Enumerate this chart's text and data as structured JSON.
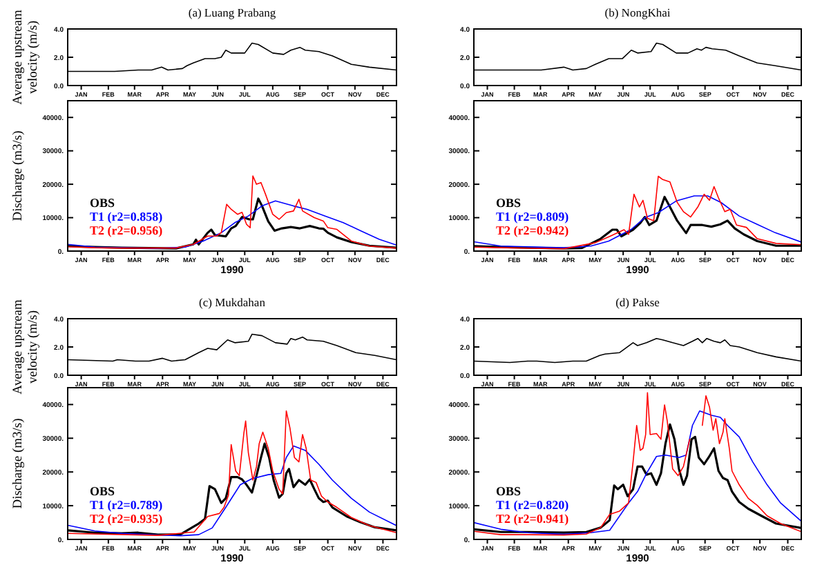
{
  "chart_data": [
    {
      "type": "line",
      "title": "(a) Luang Prabang",
      "ylabel": "Average upstream velocity (m/s)",
      "xlim": [
        "1990-01-01",
        "1990-12-31"
      ],
      "ylim": [
        0,
        4
      ],
      "yticks": [
        {
          "value": 0,
          "label": "0.0"
        },
        {
          "value": 2,
          "label": "2.0"
        },
        {
          "value": 4,
          "label": "4.0"
        }
      ],
      "xticks": [
        {
          "value": "1990-01-16",
          "label": "JAN"
        },
        {
          "value": "1990-02-15",
          "label": "FEB"
        },
        {
          "value": "1990-03-16",
          "label": "MAR"
        },
        {
          "value": "1990-04-16",
          "label": "APR"
        },
        {
          "value": "1990-05-16",
          "label": "MAY"
        },
        {
          "value": "1990-06-16",
          "label": "JUN"
        },
        {
          "value": "1990-07-16",
          "label": "JUL"
        },
        {
          "value": "1990-08-16",
          "label": "AUG"
        },
        {
          "value": "1990-09-15",
          "label": "SEP"
        },
        {
          "value": "1990-10-16",
          "label": "OCT"
        },
        {
          "value": "1990-11-15",
          "label": "NOV"
        },
        {
          "value": "1990-12-16",
          "label": "DEC"
        }
      ],
      "series": [
        {
          "color": "#000000",
          "x": [
            "1990-01-01",
            "1990-02-22",
            "1990-03-20",
            "1990-04-04",
            "1990-04-15",
            "1990-04-22",
            "1990-05-08",
            "1990-05-13",
            "1990-05-20",
            "1990-06-02",
            "1990-06-13",
            "1990-06-20",
            "1990-06-25",
            "1990-07-01",
            "1990-07-16",
            "1990-07-24",
            "1990-07-31",
            "1990-08-16",
            "1990-08-28",
            "1990-09-05",
            "1990-09-15",
            "1990-09-21",
            "1990-10-06",
            "1990-10-21",
            "1990-11-11",
            "1990-12-01",
            "1990-12-31"
          ],
          "values": [
            1.0,
            1.0,
            1.1,
            1.1,
            1.3,
            1.1,
            1.2,
            1.4,
            1.6,
            1.9,
            1.9,
            2.0,
            2.5,
            2.3,
            2.3,
            3.0,
            2.9,
            2.3,
            2.2,
            2.5,
            2.7,
            2.5,
            2.4,
            2.1,
            1.5,
            1.3,
            1.1
          ]
        }
      ]
    },
    {
      "type": "line",
      "ylabel": "Discharge (m3/s)",
      "xlabel": "1990",
      "legend": "bottom left",
      "xlim": [
        "1990-01-01",
        "1990-12-31"
      ],
      "ylim": [
        0,
        45000
      ],
      "yticks": [
        {
          "value": 0,
          "label": "0."
        },
        {
          "value": 10000,
          "label": "10000."
        },
        {
          "value": 20000,
          "label": "20000."
        },
        {
          "value": 30000,
          "label": "30000."
        },
        {
          "value": 40000,
          "label": "40000."
        }
      ],
      "xticks": [
        {
          "value": "1990-01-16",
          "label": "JAN"
        },
        {
          "value": "1990-02-15",
          "label": "FEB"
        },
        {
          "value": "1990-03-16",
          "label": "MAR"
        },
        {
          "value": "1990-04-16",
          "label": "APR"
        },
        {
          "value": "1990-05-16",
          "label": "MAY"
        },
        {
          "value": "1990-06-16",
          "label": "JUN"
        },
        {
          "value": "1990-07-16",
          "label": "JUL"
        },
        {
          "value": "1990-08-16",
          "label": "AUG"
        },
        {
          "value": "1990-09-15",
          "label": "SEP"
        },
        {
          "value": "1990-10-16",
          "label": "OCT"
        },
        {
          "value": "1990-11-15",
          "label": "NOV"
        },
        {
          "value": "1990-12-16",
          "label": "DEC"
        }
      ],
      "series": [
        {
          "name": "OBS",
          "color": "#000000",
          "x": [
            "1990-01-01",
            "1990-01-31",
            "1990-03-02",
            "1990-04-01",
            "1990-05-01",
            "1990-05-20",
            "1990-05-23",
            "1990-05-26",
            "1990-06-05",
            "1990-06-09",
            "1990-06-13",
            "1990-06-25",
            "1990-07-01",
            "1990-07-06",
            "1990-07-13",
            "1990-07-21",
            "1990-07-25",
            "1990-07-31",
            "1990-08-04",
            "1990-08-11",
            "1990-08-18",
            "1990-08-26",
            "1990-09-05",
            "1990-09-15",
            "1990-09-26",
            "1990-10-06",
            "1990-10-11",
            "1990-10-16",
            "1990-10-26",
            "1990-11-11",
            "1990-12-01",
            "1990-12-31"
          ],
          "values": [
            1500,
            1200,
            1000,
            900,
            800,
            2000,
            3400,
            2000,
            5500,
            6400,
            4800,
            4400,
            6800,
            7500,
            10200,
            9500,
            9500,
            15700,
            13600,
            8900,
            6100,
            6800,
            7200,
            6800,
            7500,
            6800,
            6700,
            5500,
            4100,
            2700,
            1600,
            1000
          ]
        },
        {
          "name": "T1 (r2=0.858)",
          "color": "#0000ff",
          "x": [
            "1990-01-01",
            "1990-01-31",
            "1990-04-11",
            "1990-05-11",
            "1990-05-31",
            "1990-06-20",
            "1990-07-05",
            "1990-07-20",
            "1990-08-04",
            "1990-08-19",
            "1990-09-08",
            "1990-09-23",
            "1990-10-13",
            "1990-11-02",
            "1990-11-22",
            "1990-12-12",
            "1990-12-31"
          ],
          "values": [
            2000,
            1200,
            800,
            1200,
            3000,
            5500,
            8500,
            10500,
            13500,
            15000,
            13500,
            12500,
            10500,
            8500,
            6000,
            3500,
            1800
          ]
        },
        {
          "name": "T2 (r2=0.956)",
          "color": "#ff0000",
          "x": [
            "1990-01-01",
            "1990-01-31",
            "1990-03-02",
            "1990-04-01",
            "1990-05-01",
            "1990-05-20",
            "1990-06-05",
            "1990-06-15",
            "1990-06-20",
            "1990-06-26",
            "1990-07-01",
            "1990-07-08",
            "1990-07-13",
            "1990-07-18",
            "1990-07-22",
            "1990-07-25",
            "1990-07-29",
            "1990-08-03",
            "1990-08-08",
            "1990-08-16",
            "1990-08-23",
            "1990-08-31",
            "1990-09-08",
            "1990-09-14",
            "1990-09-18",
            "1990-10-01",
            "1990-10-11",
            "1990-10-16",
            "1990-10-26",
            "1990-11-11",
            "1990-12-01",
            "1990-12-31"
          ],
          "values": [
            1300,
            1000,
            900,
            900,
            900,
            2000,
            4500,
            4500,
            5500,
            14000,
            12500,
            11000,
            11600,
            8000,
            7000,
            22500,
            20000,
            20500,
            17000,
            11000,
            9500,
            11500,
            12000,
            15500,
            12000,
            10000,
            9000,
            7000,
            6500,
            3000,
            1500,
            900
          ]
        }
      ]
    },
    {
      "type": "line",
      "title": "(b) NongKhai",
      "xlim": [
        "1990-01-01",
        "1990-12-31"
      ],
      "ylim": [
        0,
        4
      ],
      "yticks": [
        {
          "value": 0,
          "label": "0.0"
        },
        {
          "value": 2,
          "label": "2.0"
        },
        {
          "value": 4,
          "label": "4.0"
        }
      ],
      "xticks": [
        {
          "value": "1990-01-16",
          "label": "JAN"
        },
        {
          "value": "1990-02-15",
          "label": "FEB"
        },
        {
          "value": "1990-03-16",
          "label": "MAR"
        },
        {
          "value": "1990-04-16",
          "label": "APR"
        },
        {
          "value": "1990-05-16",
          "label": "MAY"
        },
        {
          "value": "1990-06-16",
          "label": "JUN"
        },
        {
          "value": "1990-07-16",
          "label": "JUL"
        },
        {
          "value": "1990-08-16",
          "label": "AUG"
        },
        {
          "value": "1990-09-15",
          "label": "SEP"
        },
        {
          "value": "1990-10-16",
          "label": "OCT"
        },
        {
          "value": "1990-11-15",
          "label": "NOV"
        },
        {
          "value": "1990-12-16",
          "label": "DEC"
        }
      ],
      "series": [
        {
          "color": "#000000",
          "x": [
            "1990-01-01",
            "1990-02-20",
            "1990-03-17",
            "1990-04-11",
            "1990-04-21",
            "1990-05-06",
            "1990-05-16",
            "1990-05-31",
            "1990-06-15",
            "1990-06-25",
            "1990-07-02",
            "1990-07-17",
            "1990-07-23",
            "1990-07-30",
            "1990-08-14",
            "1990-08-27",
            "1990-09-06",
            "1990-09-11",
            "1990-09-16",
            "1990-09-23",
            "1990-10-08",
            "1990-10-23",
            "1990-11-12",
            "1990-12-02",
            "1990-12-31"
          ],
          "values": [
            1.1,
            1.1,
            1.1,
            1.3,
            1.1,
            1.2,
            1.5,
            1.9,
            1.9,
            2.5,
            2.3,
            2.4,
            3.0,
            2.9,
            2.3,
            2.3,
            2.6,
            2.5,
            2.7,
            2.6,
            2.5,
            2.1,
            1.6,
            1.4,
            1.1
          ]
        }
      ]
    },
    {
      "type": "line",
      "xlabel": "1990",
      "legend": "bottom left",
      "xlim": [
        "1990-01-01",
        "1990-12-31"
      ],
      "ylim": [
        0,
        45000
      ],
      "yticks": [
        {
          "value": 0,
          "label": "0."
        },
        {
          "value": 10000,
          "label": "10000."
        },
        {
          "value": 20000,
          "label": "20000."
        },
        {
          "value": 30000,
          "label": "30000."
        },
        {
          "value": 40000,
          "label": "40000."
        }
      ],
      "xticks": [
        {
          "value": "1990-01-16",
          "label": "JAN"
        },
        {
          "value": "1990-02-15",
          "label": "FEB"
        },
        {
          "value": "1990-03-16",
          "label": "MAR"
        },
        {
          "value": "1990-04-16",
          "label": "APR"
        },
        {
          "value": "1990-05-16",
          "label": "MAY"
        },
        {
          "value": "1990-06-16",
          "label": "JUN"
        },
        {
          "value": "1990-07-16",
          "label": "JUL"
        },
        {
          "value": "1990-08-16",
          "label": "AUG"
        },
        {
          "value": "1990-09-15",
          "label": "SEP"
        },
        {
          "value": "1990-10-16",
          "label": "OCT"
        },
        {
          "value": "1990-11-15",
          "label": "NOV"
        },
        {
          "value": "1990-12-16",
          "label": "DEC"
        }
      ],
      "series": [
        {
          "name": "OBS",
          "color": "#000000",
          "x": [
            "1990-01-01",
            "1990-01-31",
            "1990-03-02",
            "1990-04-11",
            "1990-05-01",
            "1990-05-22",
            "1990-06-04",
            "1990-06-09",
            "1990-06-14",
            "1990-06-27",
            "1990-07-05",
            "1990-07-10",
            "1990-07-15",
            "1990-07-23",
            "1990-08-01",
            "1990-08-07",
            "1990-08-15",
            "1990-08-25",
            "1990-08-30",
            "1990-09-12",
            "1990-09-22",
            "1990-10-02",
            "1990-10-10",
            "1990-10-18",
            "1990-10-28",
            "1990-11-12",
            "1990-12-03",
            "1990-12-31"
          ],
          "values": [
            1500,
            1200,
            1000,
            800,
            900,
            3700,
            6400,
            6400,
            4400,
            6400,
            8400,
            10200,
            7800,
            9100,
            16200,
            13200,
            9100,
            5400,
            7800,
            7800,
            7300,
            8000,
            9100,
            6800,
            5000,
            3000,
            1600,
            1600
          ]
        },
        {
          "name": "T1 (r2=0.809)",
          "color": "#0000ff",
          "x": [
            "1990-01-01",
            "1990-01-31",
            "1990-04-11",
            "1990-05-11",
            "1990-05-31",
            "1990-06-25",
            "1990-07-10",
            "1990-07-25",
            "1990-08-14",
            "1990-09-03",
            "1990-09-18",
            "1990-10-03",
            "1990-10-23",
            "1990-11-12",
            "1990-12-02",
            "1990-12-31"
          ],
          "values": [
            2800,
            1500,
            1000,
            1500,
            3000,
            6500,
            10000,
            11500,
            15000,
            16500,
            16500,
            14500,
            10500,
            8000,
            5500,
            2700
          ]
        },
        {
          "name": "T2 (r2=0.942)",
          "color": "#ff0000",
          "x": [
            "1990-01-01",
            "1990-01-31",
            "1990-04-11",
            "1990-05-16",
            "1990-06-01",
            "1990-06-17",
            "1990-06-22",
            "1990-06-28",
            "1990-07-04",
            "1990-07-08",
            "1990-07-13",
            "1990-07-20",
            "1990-07-25",
            "1990-07-30",
            "1990-08-07",
            "1990-08-15",
            "1990-08-22",
            "1990-08-30",
            "1990-09-07",
            "1990-09-14",
            "1990-09-20",
            "1990-09-25",
            "1990-09-30",
            "1990-10-07",
            "1990-10-13",
            "1990-10-20",
            "1990-10-31",
            "1990-11-12",
            "1990-12-03",
            "1990-12-31"
          ],
          "values": [
            1200,
            1000,
            700,
            2500,
            4400,
            6400,
            5000,
            17000,
            13200,
            15200,
            9800,
            9100,
            22400,
            21400,
            20700,
            14600,
            11800,
            10200,
            13200,
            17000,
            15200,
            19300,
            15900,
            11800,
            12500,
            7800,
            7100,
            3700,
            2300,
            1900
          ]
        }
      ]
    },
    {
      "type": "line",
      "title": "(c) Mukdahan",
      "ylabel": "Average upstream velocity (m/s)",
      "xlim": [
        "1990-01-01",
        "1990-12-31"
      ],
      "ylim": [
        0,
        4
      ],
      "yticks": [
        {
          "value": 0,
          "label": "0.0"
        },
        {
          "value": 2,
          "label": "2.0"
        },
        {
          "value": 4,
          "label": "4.0"
        }
      ],
      "xticks": [
        {
          "value": "1990-01-16",
          "label": "JAN"
        },
        {
          "value": "1990-02-15",
          "label": "FEB"
        },
        {
          "value": "1990-03-16",
          "label": "MAR"
        },
        {
          "value": "1990-04-16",
          "label": "APR"
        },
        {
          "value": "1990-05-16",
          "label": "MAY"
        },
        {
          "value": "1990-06-16",
          "label": "JUN"
        },
        {
          "value": "1990-07-16",
          "label": "JUL"
        },
        {
          "value": "1990-08-16",
          "label": "AUG"
        },
        {
          "value": "1990-09-15",
          "label": "SEP"
        },
        {
          "value": "1990-10-16",
          "label": "OCT"
        },
        {
          "value": "1990-11-15",
          "label": "NOV"
        },
        {
          "value": "1990-12-16",
          "label": "DEC"
        }
      ],
      "series": [
        {
          "color": "#000000",
          "x": [
            "1990-01-01",
            "1990-02-20",
            "1990-02-25",
            "1990-03-17",
            "1990-04-01",
            "1990-04-16",
            "1990-04-26",
            "1990-05-11",
            "1990-05-26",
            "1990-06-05",
            "1990-06-15",
            "1990-06-27",
            "1990-07-05",
            "1990-07-20",
            "1990-07-24",
            "1990-08-04",
            "1990-08-19",
            "1990-09-01",
            "1990-09-05",
            "1990-09-10",
            "1990-09-18",
            "1990-09-23",
            "1990-10-11",
            "1990-10-26",
            "1990-11-16",
            "1990-12-07",
            "1990-12-31"
          ],
          "values": [
            1.1,
            1.0,
            1.1,
            1.0,
            1.0,
            1.2,
            1.0,
            1.1,
            1.6,
            1.9,
            1.8,
            2.5,
            2.3,
            2.4,
            2.9,
            2.8,
            2.3,
            2.2,
            2.6,
            2.5,
            2.7,
            2.5,
            2.4,
            2.1,
            1.6,
            1.4,
            1.1
          ]
        }
      ]
    },
    {
      "type": "line",
      "ylabel": "Discharge (m3/s)",
      "xlabel": "1990",
      "legend": "bottom left",
      "xlim": [
        "1990-01-01",
        "1990-12-31"
      ],
      "ylim": [
        0,
        45000
      ],
      "yticks": [
        {
          "value": 0,
          "label": "0."
        },
        {
          "value": 10000,
          "label": "10000."
        },
        {
          "value": 20000,
          "label": "20000."
        },
        {
          "value": 30000,
          "label": "30000."
        },
        {
          "value": 40000,
          "label": "40000."
        }
      ],
      "xticks": [
        {
          "value": "1990-01-16",
          "label": "JAN"
        },
        {
          "value": "1990-02-15",
          "label": "FEB"
        },
        {
          "value": "1990-03-16",
          "label": "MAR"
        },
        {
          "value": "1990-04-16",
          "label": "APR"
        },
        {
          "value": "1990-05-16",
          "label": "MAY"
        },
        {
          "value": "1990-06-16",
          "label": "JUN"
        },
        {
          "value": "1990-07-16",
          "label": "JUL"
        },
        {
          "value": "1990-08-16",
          "label": "AUG"
        },
        {
          "value": "1990-09-15",
          "label": "SEP"
        },
        {
          "value": "1990-10-16",
          "label": "OCT"
        },
        {
          "value": "1990-11-15",
          "label": "NOV"
        },
        {
          "value": "1990-12-16",
          "label": "DEC"
        }
      ],
      "series": [
        {
          "name": "OBS",
          "color": "#000000",
          "x": [
            "1990-01-01",
            "1990-01-31",
            "1990-03-02",
            "1990-03-20",
            "1990-04-11",
            "1990-05-06",
            "1990-05-26",
            "1990-06-02",
            "1990-06-07",
            "1990-06-13",
            "1990-06-20",
            "1990-06-25",
            "1990-07-01",
            "1990-07-08",
            "1990-07-13",
            "1990-07-18",
            "1990-07-24",
            "1990-07-29",
            "1990-08-03",
            "1990-08-07",
            "1990-08-12",
            "1990-08-17",
            "1990-08-23",
            "1990-08-27",
            "1990-08-31",
            "1990-09-03",
            "1990-09-08",
            "1990-09-14",
            "1990-09-21",
            "1990-09-26",
            "1990-10-01",
            "1990-10-06",
            "1990-10-11",
            "1990-10-16",
            "1990-10-21",
            "1990-11-06",
            "1990-11-21",
            "1990-12-07",
            "1990-12-31"
          ],
          "values": [
            2700,
            2000,
            1800,
            2000,
            1400,
            1500,
            4700,
            6100,
            15800,
            14900,
            10800,
            12200,
            18500,
            18500,
            17800,
            16200,
            13900,
            18900,
            24300,
            28400,
            24300,
            17600,
            12400,
            13500,
            19600,
            20900,
            15500,
            17600,
            16200,
            17800,
            14900,
            12200,
            11100,
            11500,
            9500,
            6800,
            5100,
            3600,
            2700
          ]
        },
        {
          "name": "T1 (r2=0.789)",
          "color": "#0000ff",
          "x": [
            "1990-01-01",
            "1990-01-31",
            "1990-03-02",
            "1990-04-11",
            "1990-05-06",
            "1990-05-26",
            "1990-06-10",
            "1990-06-25",
            "1990-07-11",
            "1990-07-24",
            "1990-08-11",
            "1990-08-25",
            "1990-08-31",
            "1990-09-08",
            "1990-09-21",
            "1990-10-06",
            "1990-10-21",
            "1990-11-11",
            "1990-12-01",
            "1990-12-31"
          ],
          "values": [
            4200,
            2500,
            1800,
            1300,
            1100,
            1400,
            3400,
            9500,
            16200,
            18000,
            19200,
            19600,
            24300,
            27700,
            26400,
            22300,
            17600,
            12200,
            8100,
            4100
          ]
        },
        {
          "name": "T2 (r2=0.935)",
          "color": "#ff0000",
          "x": [
            "1990-01-01",
            "1990-04-11",
            "1990-05-21",
            "1990-06-05",
            "1990-06-18",
            "1990-06-23",
            "1990-06-28",
            "1990-07-01",
            "1990-07-06",
            "1990-07-10",
            "1990-07-15",
            "1990-07-17",
            "1990-07-20",
            "1990-07-25",
            "1990-07-29",
            "1990-08-01",
            "1990-08-05",
            "1990-08-11",
            "1990-08-16",
            "1990-08-23",
            "1990-08-27",
            "1990-08-31",
            "1990-09-04",
            "1990-09-09",
            "1990-09-14",
            "1990-09-18",
            "1990-09-22",
            "1990-09-27",
            "1990-10-03",
            "1990-10-09",
            "1990-10-16",
            "1990-10-26",
            "1990-11-11",
            "1990-12-01",
            "1990-12-31"
          ],
          "values": [
            1800,
            1200,
            2200,
            6800,
            7700,
            9500,
            13100,
            28100,
            20300,
            18900,
            31400,
            35100,
            25700,
            17600,
            21600,
            28400,
            31800,
            27000,
            20300,
            14900,
            13500,
            38100,
            33100,
            24300,
            23000,
            31100,
            27000,
            17600,
            16900,
            12800,
            11100,
            9500,
            6500,
            4100,
            2000
          ]
        }
      ]
    },
    {
      "type": "line",
      "title": "(d) Pakse",
      "xlim": [
        "1990-01-01",
        "1990-12-31"
      ],
      "ylim": [
        0,
        4
      ],
      "yticks": [
        {
          "value": 0,
          "label": "0.0"
        },
        {
          "value": 2,
          "label": "2.0"
        },
        {
          "value": 4,
          "label": "4.0"
        }
      ],
      "xticks": [
        {
          "value": "1990-01-16",
          "label": "JAN"
        },
        {
          "value": "1990-02-15",
          "label": "FEB"
        },
        {
          "value": "1990-03-16",
          "label": "MAR"
        },
        {
          "value": "1990-04-16",
          "label": "APR"
        },
        {
          "value": "1990-05-16",
          "label": "MAY"
        },
        {
          "value": "1990-06-16",
          "label": "JUN"
        },
        {
          "value": "1990-07-16",
          "label": "JUL"
        },
        {
          "value": "1990-08-16",
          "label": "AUG"
        },
        {
          "value": "1990-09-15",
          "label": "SEP"
        },
        {
          "value": "1990-10-16",
          "label": "OCT"
        },
        {
          "value": "1990-11-15",
          "label": "NOV"
        },
        {
          "value": "1990-12-16",
          "label": "DEC"
        }
      ],
      "series": [
        {
          "color": "#000000",
          "x": [
            "1990-01-01",
            "1990-02-10",
            "1990-03-02",
            "1990-03-12",
            "1990-04-01",
            "1990-04-21",
            "1990-05-06",
            "1990-05-21",
            "1990-05-27",
            "1990-06-12",
            "1990-06-27",
            "1990-07-02",
            "1990-07-12",
            "1990-07-23",
            "1990-07-30",
            "1990-08-10",
            "1990-08-22",
            "1990-09-01",
            "1990-09-07",
            "1990-09-12",
            "1990-09-17",
            "1990-09-25",
            "1990-10-02",
            "1990-10-07",
            "1990-10-13",
            "1990-10-23",
            "1990-11-12",
            "1990-12-03",
            "1990-12-31"
          ],
          "values": [
            1.0,
            0.9,
            1.0,
            1.0,
            0.9,
            1.0,
            1.0,
            1.4,
            1.5,
            1.6,
            2.3,
            2.1,
            2.3,
            2.6,
            2.5,
            2.3,
            2.1,
            2.4,
            2.6,
            2.3,
            2.6,
            2.4,
            2.3,
            2.5,
            2.1,
            2.0,
            1.6,
            1.3,
            1.0
          ]
        }
      ]
    },
    {
      "type": "line",
      "xlabel": "1990",
      "legend": "bottom left",
      "xlim": [
        "1990-01-01",
        "1990-12-31"
      ],
      "ylim": [
        0,
        45000
      ],
      "yticks": [
        {
          "value": 0,
          "label": "0."
        },
        {
          "value": 10000,
          "label": "10000."
        },
        {
          "value": 20000,
          "label": "20000."
        },
        {
          "value": 30000,
          "label": "30000."
        },
        {
          "value": 40000,
          "label": "40000."
        }
      ],
      "xticks": [
        {
          "value": "1990-01-16",
          "label": "JAN"
        },
        {
          "value": "1990-02-15",
          "label": "FEB"
        },
        {
          "value": "1990-03-16",
          "label": "MAR"
        },
        {
          "value": "1990-04-16",
          "label": "APR"
        },
        {
          "value": "1990-05-16",
          "label": "MAY"
        },
        {
          "value": "1990-06-16",
          "label": "JUN"
        },
        {
          "value": "1990-07-16",
          "label": "JUL"
        },
        {
          "value": "1990-08-16",
          "label": "AUG"
        },
        {
          "value": "1990-09-15",
          "label": "SEP"
        },
        {
          "value": "1990-10-16",
          "label": "OCT"
        },
        {
          "value": "1990-11-15",
          "label": "NOV"
        },
        {
          "value": "1990-12-16",
          "label": "DEC"
        }
      ],
      "series": [
        {
          "name": "OBS",
          "color": "#000000",
          "x": [
            "1990-01-01",
            "1990-01-31",
            "1990-03-02",
            "1990-04-11",
            "1990-05-06",
            "1990-05-22",
            "1990-06-01",
            "1990-06-06",
            "1990-06-10",
            "1990-06-16",
            "1990-06-21",
            "1990-06-27",
            "1990-07-02",
            "1990-07-07",
            "1990-07-12",
            "1990-07-17",
            "1990-07-23",
            "1990-07-28",
            "1990-08-02",
            "1990-08-07",
            "1990-08-12",
            "1990-08-17",
            "1990-08-22",
            "1990-08-26",
            "1990-08-31",
            "1990-09-04",
            "1990-09-08",
            "1990-09-14",
            "1990-09-19",
            "1990-09-25",
            "1990-09-30",
            "1990-10-05",
            "1990-10-10",
            "1990-10-15",
            "1990-10-23",
            "1990-11-02",
            "1990-11-18",
            "1990-12-03",
            "1990-12-31"
          ],
          "values": [
            3000,
            2200,
            2200,
            2000,
            2200,
            3500,
            5700,
            16000,
            14900,
            16200,
            12800,
            14900,
            21600,
            21600,
            19200,
            19600,
            16200,
            19600,
            28400,
            34100,
            29700,
            20900,
            16200,
            18900,
            29700,
            30400,
            24300,
            22300,
            24300,
            27000,
            20300,
            18200,
            17600,
            14200,
            11100,
            9100,
            6800,
            4700,
            3400
          ]
        },
        {
          "name": "T1 (r2=0.820)",
          "color": "#0000ff",
          "x": [
            "1990-01-01",
            "1990-01-31",
            "1990-03-02",
            "1990-04-11",
            "1990-05-11",
            "1990-06-01",
            "1990-06-22",
            "1990-07-02",
            "1990-07-12",
            "1990-07-23",
            "1990-08-02",
            "1990-08-17",
            "1990-08-25",
            "1990-09-01",
            "1990-09-09",
            "1990-09-22",
            "1990-10-02",
            "1990-10-10",
            "1990-10-23",
            "1990-11-07",
            "1990-11-23",
            "1990-12-08",
            "1990-12-31"
          ],
          "values": [
            5000,
            3000,
            2000,
            1500,
            2000,
            2700,
            10800,
            14200,
            19600,
            24600,
            25000,
            24300,
            25000,
            33800,
            38100,
            36800,
            36200,
            33800,
            30400,
            23000,
            16200,
            10800,
            5400
          ]
        },
        {
          "name": "T2 (r2=0.941)",
          "color": "#ff0000",
          "x": [
            "1990-01-01",
            "1990-01-31",
            "1990-03-02",
            "1990-04-11",
            "1990-05-06",
            "1990-05-22",
            "1990-06-01",
            "1990-06-12",
            "1990-06-22",
            "1990-06-27",
            "1990-07-01",
            "1990-07-05",
            "1990-07-08",
            "1990-07-11",
            "1990-07-13",
            "1990-07-16",
            "1990-07-23",
            "1990-07-28",
            "1990-08-01",
            "1990-08-04",
            "1990-08-10",
            "1990-08-16",
            "1990-08-22",
            "1990-08-29",
            "1990-09-03",
            "1990-09-07",
            "1990-09-12",
            "1990-09-16",
            "1990-09-20",
            "1990-09-24",
            "1990-09-27",
            "1990-10-01",
            "1990-10-05",
            "1990-10-07",
            "1990-10-12",
            "1990-10-15",
            "1990-10-23",
            "1990-11-02",
            "1990-11-12",
            "1990-11-23",
            "1990-12-08",
            "1990-12-31"
          ],
          "values": [
            2400,
            1400,
            1400,
            1300,
            1600,
            3500,
            7400,
            8400,
            10800,
            23000,
            33800,
            26400,
            27000,
            31100,
            43500,
            31100,
            31400,
            29700,
            39900,
            35100,
            20900,
            18900,
            21600,
            29700,
            null,
            null,
            33800,
            42600,
            39200,
            32400,
            35800,
            28400,
            31800,
            35800,
            27000,
            20300,
            16200,
            12200,
            10100,
            7000,
            4700,
            2300
          ]
        }
      ]
    }
  ]
}
